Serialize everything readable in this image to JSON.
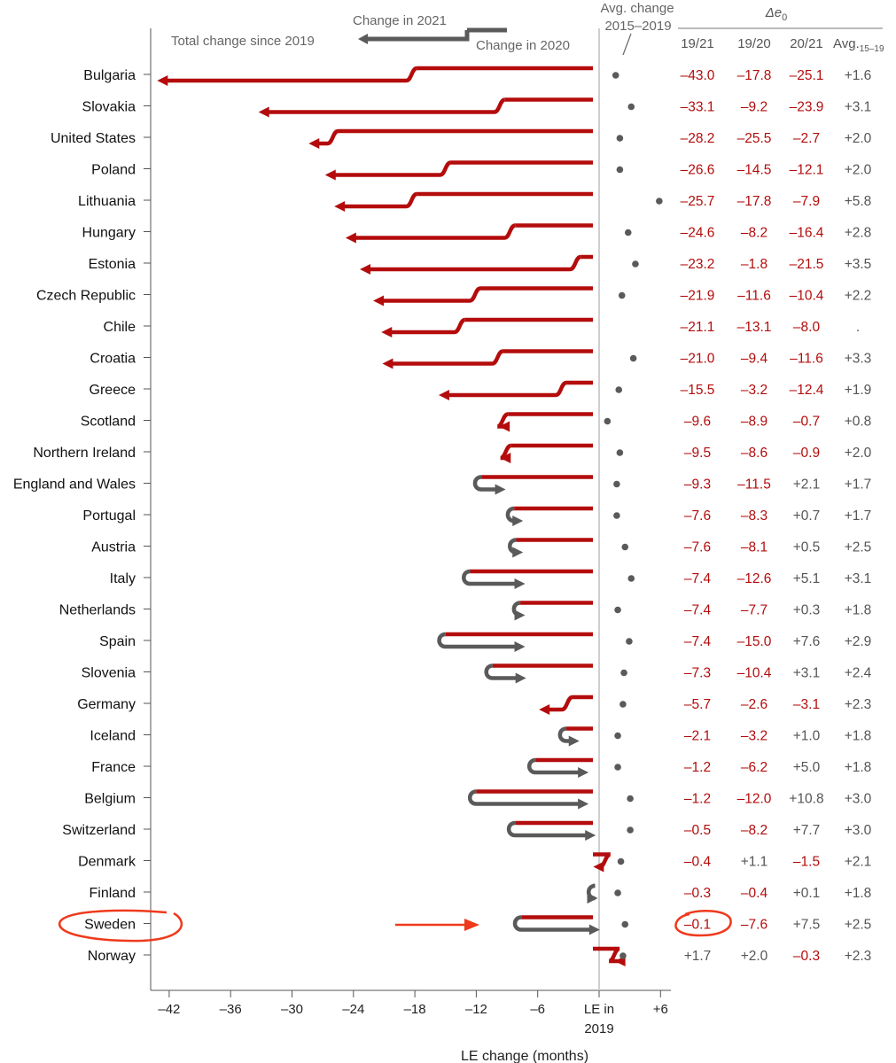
{
  "colors": {
    "red": "#b40c0c",
    "gray": "#5a5a5a",
    "highlight": "#ee3a1c",
    "black": "#111111",
    "neg_text": "#b40c0c",
    "pos_text": "#555555"
  },
  "legend": {
    "change_2021": "Change in 2021",
    "total_change": "Total change since 2019",
    "change_2020": "Change in 2020"
  },
  "avg_header": {
    "line1": "Avg. change",
    "line2": "2015–2019"
  },
  "delta_header": "Δe",
  "delta_sub": "0",
  "columns": [
    "19/21",
    "19/20",
    "20/21",
    "Avg."
  ],
  "avg_sub": "15–19",
  "xlabel": "LE change (months)",
  "zero_tick": {
    "line1": "LE in",
    "line2": "2019"
  },
  "chart_data": {
    "type": "arrow",
    "xlim": [
      -43.5,
      7
    ],
    "xticks": [
      -42,
      -36,
      -30,
      -24,
      -18,
      -12,
      -6,
      6
    ],
    "highlight": "Sweden",
    "rows": [
      {
        "country": "Bulgaria",
        "d1920": -17.8,
        "d1921": -43.0,
        "avg": 1.6,
        "txt": [
          "–43.0",
          "–17.8",
          "–25.1",
          "+1.6"
        ]
      },
      {
        "country": "Slovakia",
        "d1920": -9.2,
        "d1921": -33.1,
        "avg": 3.1,
        "txt": [
          "–33.1",
          "–9.2",
          "–23.9",
          "+3.1"
        ]
      },
      {
        "country": "United States",
        "d1920": -25.5,
        "d1921": -28.2,
        "avg": 2.0,
        "txt": [
          "–28.2",
          "–25.5",
          "–2.7",
          "+2.0"
        ]
      },
      {
        "country": "Poland",
        "d1920": -14.5,
        "d1921": -26.6,
        "avg": 2.0,
        "txt": [
          "–26.6",
          "–14.5",
          "–12.1",
          "+2.0"
        ]
      },
      {
        "country": "Lithuania",
        "d1920": -17.8,
        "d1921": -25.7,
        "avg": 5.8,
        "txt": [
          "–25.7",
          "–17.8",
          "–7.9",
          "+5.8"
        ]
      },
      {
        "country": "Hungary",
        "d1920": -8.2,
        "d1921": -24.6,
        "avg": 2.8,
        "txt": [
          "–24.6",
          "–8.2",
          "–16.4",
          "+2.8"
        ]
      },
      {
        "country": "Estonia",
        "d1920": -1.8,
        "d1921": -23.2,
        "avg": 3.5,
        "txt": [
          "–23.2",
          "–1.8",
          "–21.5",
          "+3.5"
        ]
      },
      {
        "country": "Czech Republic",
        "d1920": -11.6,
        "d1921": -21.9,
        "avg": 2.2,
        "txt": [
          "–21.9",
          "–11.6",
          "–10.4",
          "+2.2"
        ]
      },
      {
        "country": "Chile",
        "d1920": -13.1,
        "d1921": -21.1,
        "avg": null,
        "txt": [
          "–21.1",
          "–13.1",
          "–8.0",
          "."
        ]
      },
      {
        "country": "Croatia",
        "d1920": -9.4,
        "d1921": -21.0,
        "avg": 3.3,
        "txt": [
          "–21.0",
          "–9.4",
          "–11.6",
          "+3.3"
        ]
      },
      {
        "country": "Greece",
        "d1920": -3.2,
        "d1921": -15.5,
        "avg": 1.9,
        "txt": [
          "–15.5",
          "–3.2",
          "–12.4",
          "+1.9"
        ]
      },
      {
        "country": "Scotland",
        "d1920": -8.9,
        "d1921": -9.6,
        "avg": 0.8,
        "txt": [
          "–9.6",
          "–8.9",
          "–0.7",
          "+0.8"
        ]
      },
      {
        "country": "Northern Ireland",
        "d1920": -8.6,
        "d1921": -9.5,
        "avg": 2.0,
        "txt": [
          "–9.5",
          "–8.6",
          "–0.9",
          "+2.0"
        ]
      },
      {
        "country": "England and Wales",
        "d1920": -11.5,
        "d1921": -9.3,
        "avg": 1.7,
        "txt": [
          "–9.3",
          "–11.5",
          "+2.1",
          "+1.7"
        ]
      },
      {
        "country": "Portugal",
        "d1920": -8.3,
        "d1921": -7.6,
        "avg": 1.7,
        "txt": [
          "–7.6",
          "–8.3",
          "+0.7",
          "+1.7"
        ]
      },
      {
        "country": "Austria",
        "d1920": -8.1,
        "d1921": -7.6,
        "avg": 2.5,
        "txt": [
          "–7.6",
          "–8.1",
          "+0.5",
          "+2.5"
        ]
      },
      {
        "country": "Italy",
        "d1920": -12.6,
        "d1921": -7.4,
        "avg": 3.1,
        "txt": [
          "–7.4",
          "–12.6",
          "+5.1",
          "+3.1"
        ]
      },
      {
        "country": "Netherlands",
        "d1920": -7.7,
        "d1921": -7.4,
        "avg": 1.8,
        "txt": [
          "–7.4",
          "–7.7",
          "+0.3",
          "+1.8"
        ]
      },
      {
        "country": "Spain",
        "d1920": -15.0,
        "d1921": -7.4,
        "avg": 2.9,
        "txt": [
          "–7.4",
          "–15.0",
          "+7.6",
          "+2.9"
        ]
      },
      {
        "country": "Slovenia",
        "d1920": -10.4,
        "d1921": -7.3,
        "avg": 2.4,
        "txt": [
          "–7.3",
          "–10.4",
          "+3.1",
          "+2.4"
        ]
      },
      {
        "country": "Germany",
        "d1920": -2.6,
        "d1921": -5.7,
        "avg": 2.3,
        "txt": [
          "–5.7",
          "–2.6",
          "–3.1",
          "+2.3"
        ]
      },
      {
        "country": "Iceland",
        "d1920": -3.2,
        "d1921": -2.1,
        "avg": 1.8,
        "txt": [
          "–2.1",
          "–3.2",
          "+1.0",
          "+1.8"
        ]
      },
      {
        "country": "France",
        "d1920": -6.2,
        "d1921": -1.2,
        "avg": 1.8,
        "txt": [
          "–1.2",
          "–6.2",
          "+5.0",
          "+1.8"
        ]
      },
      {
        "country": "Belgium",
        "d1920": -12.0,
        "d1921": -1.2,
        "avg": 3.0,
        "txt": [
          "–1.2",
          "–12.0",
          "+10.8",
          "+3.0"
        ]
      },
      {
        "country": "Switzerland",
        "d1920": -8.2,
        "d1921": -0.5,
        "avg": 3.0,
        "txt": [
          "–0.5",
          "–8.2",
          "+7.7",
          "+3.0"
        ]
      },
      {
        "country": "Denmark",
        "d1920": 1.1,
        "d1921": -0.4,
        "avg": 2.1,
        "txt": [
          "–0.4",
          "+1.1",
          "–1.5",
          "+2.1"
        ]
      },
      {
        "country": "Finland",
        "d1920": -0.4,
        "d1921": -0.3,
        "avg": 1.8,
        "txt": [
          "–0.3",
          "–0.4",
          "+0.1",
          "+1.8"
        ]
      },
      {
        "country": "Sweden",
        "d1920": -7.6,
        "d1921": -0.1,
        "avg": 2.5,
        "txt": [
          "–0.1",
          "–7.6",
          "+7.5",
          "+2.5"
        ]
      },
      {
        "country": "Norway",
        "d1920": 2.0,
        "d1921": 1.7,
        "avg": 2.3,
        "txt": [
          "+1.7",
          "+2.0",
          "–0.3",
          "+2.3"
        ]
      }
    ]
  }
}
